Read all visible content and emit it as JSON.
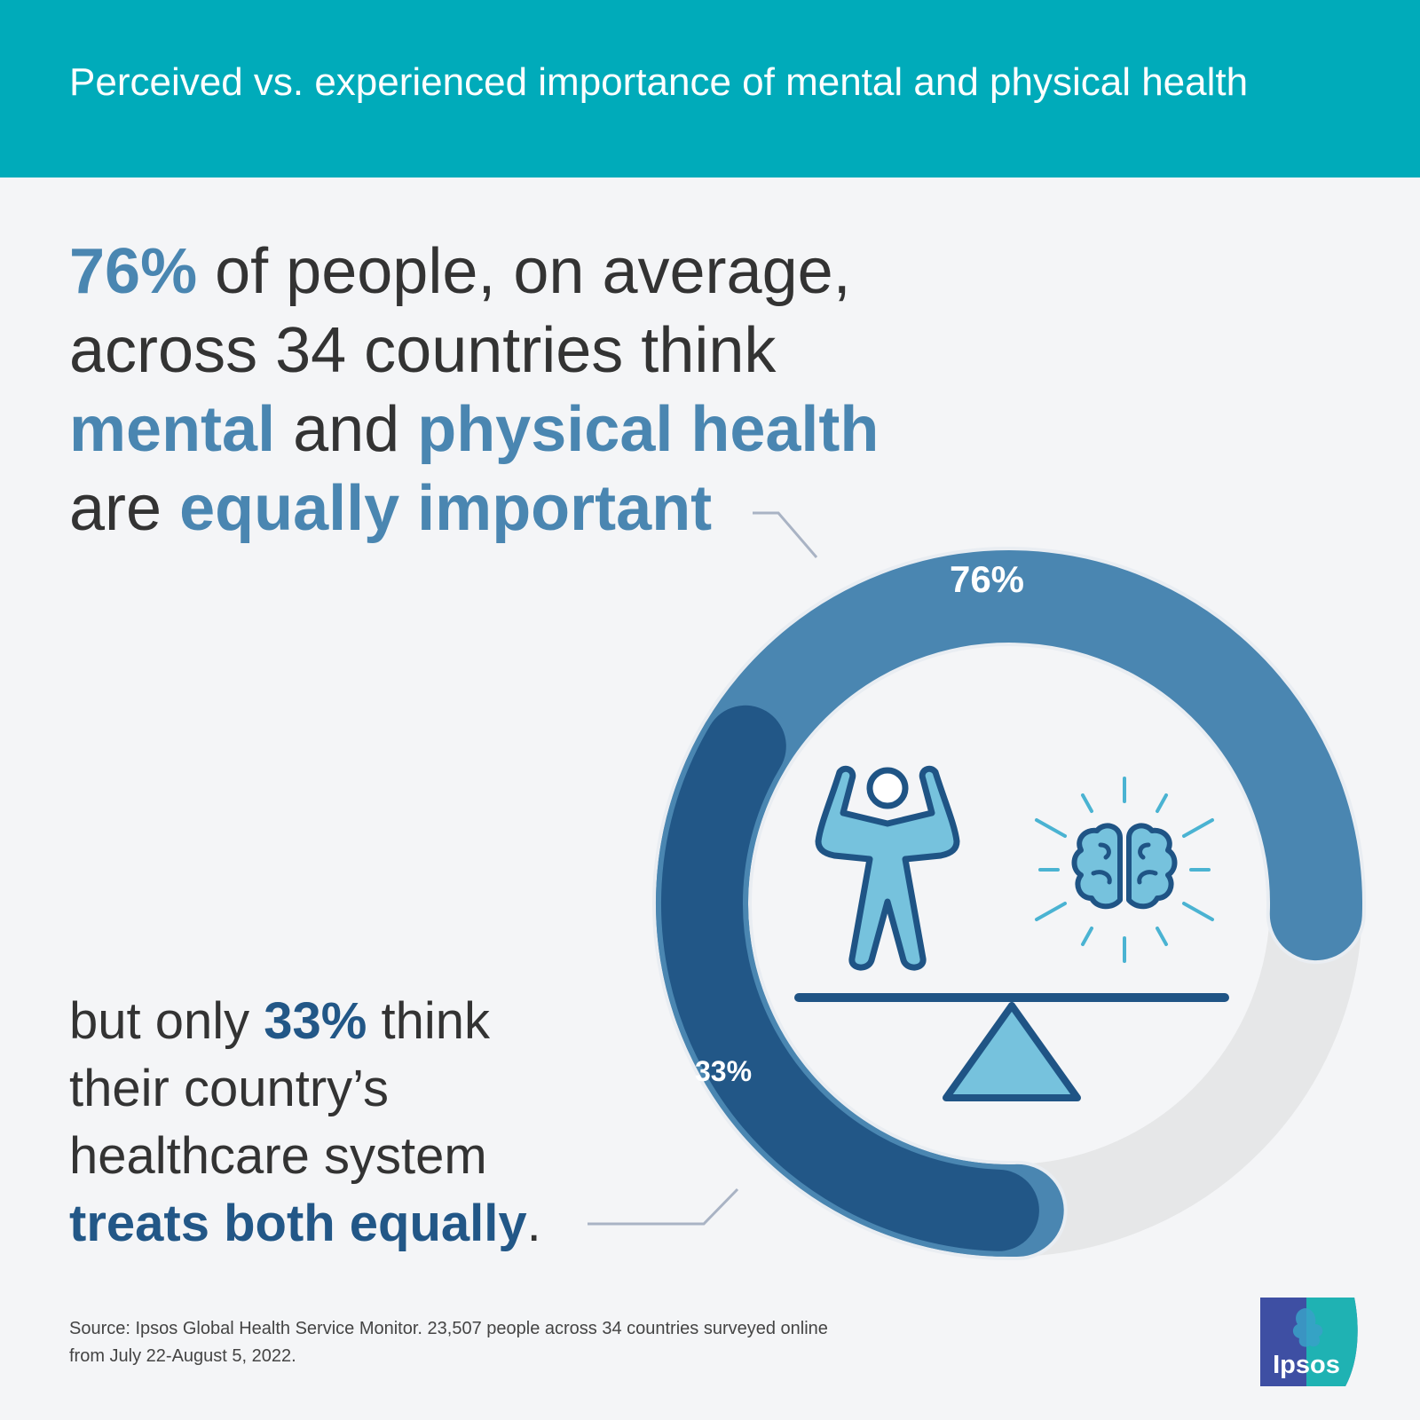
{
  "header": {
    "title": "Perceived vs. experienced importance of mental and physical health"
  },
  "headline": {
    "pct": "76%",
    "t1": " of people, on average,",
    "t2": "across 34 countries think",
    "mental": "mental",
    "and": " and ",
    "physical": "physical health",
    "are": "are ",
    "equally": "equally important"
  },
  "subline": {
    "t1": "but only ",
    "pct": "33%",
    "t2": " think",
    "t3": "their country’s",
    "t4": "healthcare system",
    "treats": "treats both equally",
    "period": "."
  },
  "source": {
    "line1": "Source: Ipsos Global Health Service Monitor. 23,507 people across 34 countries surveyed online",
    "line2": "from July 22-August 5, 2022."
  },
  "logo": {
    "text": "Ipsos"
  },
  "colors": {
    "teal": "#00abba",
    "light_blue": "#4a86b1",
    "dark_blue": "#225787",
    "track": "#e6e7e8",
    "icon_fill": "#76c2dd",
    "icon_stroke": "#1f5485"
  },
  "icons": [
    "strong-person-icon",
    "brain-icon",
    "balance-scale-icon"
  ],
  "chart_data": {
    "type": "donut",
    "max": 100,
    "series": [
      {
        "value": 76,
        "label": "76%",
        "color": "#4a86b1"
      },
      {
        "value": 33,
        "label": "33%",
        "color": "#225787"
      }
    ]
  }
}
